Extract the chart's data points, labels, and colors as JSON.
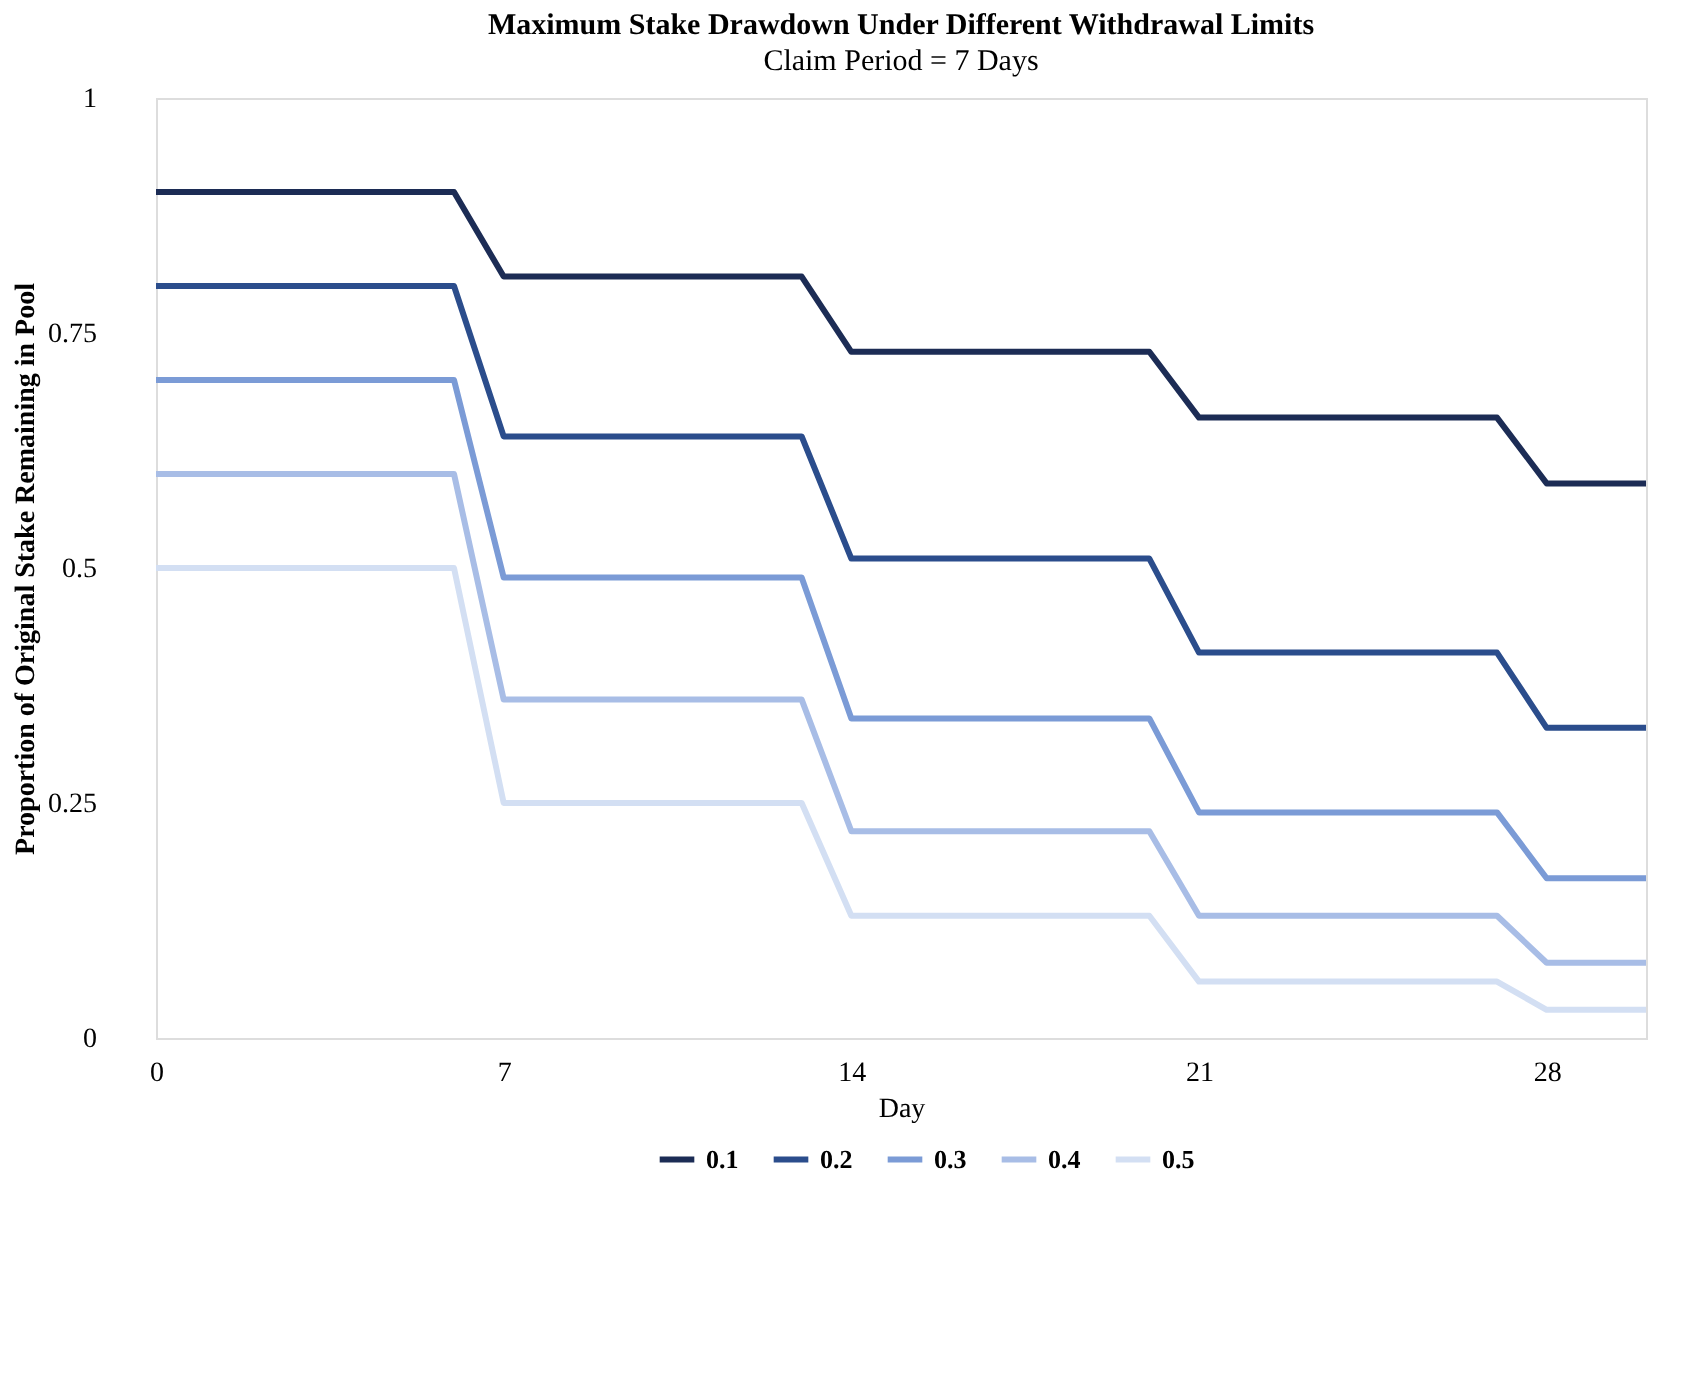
{
  "chart_data": {
    "type": "line",
    "title": "Maximum Stake Drawdown Under Different Withdrawal Limits",
    "subtitle": "Claim Period = 7 Days",
    "xlabel": "Day",
    "ylabel": "Proportion of Original Stake Remaining in Pool",
    "x": [
      0,
      1,
      2,
      3,
      4,
      5,
      6,
      7,
      8,
      9,
      10,
      11,
      12,
      13,
      14,
      15,
      16,
      17,
      18,
      19,
      20,
      21,
      22,
      23,
      24,
      25,
      26,
      27,
      28,
      29,
      30
    ],
    "series": [
      {
        "name": "0.1",
        "color": "#1c2c55",
        "values": [
          0.9,
          0.9,
          0.9,
          0.9,
          0.9,
          0.9,
          0.9,
          0.81,
          0.81,
          0.81,
          0.81,
          0.81,
          0.81,
          0.81,
          0.73,
          0.73,
          0.73,
          0.73,
          0.73,
          0.73,
          0.73,
          0.66,
          0.66,
          0.66,
          0.66,
          0.66,
          0.66,
          0.66,
          0.59,
          0.59,
          0.59
        ]
      },
      {
        "name": "0.2",
        "color": "#2b4d8c",
        "values": [
          0.8,
          0.8,
          0.8,
          0.8,
          0.8,
          0.8,
          0.8,
          0.64,
          0.64,
          0.64,
          0.64,
          0.64,
          0.64,
          0.64,
          0.51,
          0.51,
          0.51,
          0.51,
          0.51,
          0.51,
          0.51,
          0.41,
          0.41,
          0.41,
          0.41,
          0.41,
          0.41,
          0.41,
          0.33,
          0.33,
          0.33
        ]
      },
      {
        "name": "0.3",
        "color": "#7b9bd6",
        "values": [
          0.7,
          0.7,
          0.7,
          0.7,
          0.7,
          0.7,
          0.7,
          0.49,
          0.49,
          0.49,
          0.49,
          0.49,
          0.49,
          0.49,
          0.34,
          0.34,
          0.34,
          0.34,
          0.34,
          0.34,
          0.34,
          0.24,
          0.24,
          0.24,
          0.24,
          0.24,
          0.24,
          0.24,
          0.17,
          0.17,
          0.17
        ]
      },
      {
        "name": "0.4",
        "color": "#a8bde6",
        "values": [
          0.6,
          0.6,
          0.6,
          0.6,
          0.6,
          0.6,
          0.6,
          0.36,
          0.36,
          0.36,
          0.36,
          0.36,
          0.36,
          0.36,
          0.22,
          0.22,
          0.22,
          0.22,
          0.22,
          0.22,
          0.22,
          0.13,
          0.13,
          0.13,
          0.13,
          0.13,
          0.13,
          0.13,
          0.08,
          0.08,
          0.08
        ]
      },
      {
        "name": "0.5",
        "color": "#d3dff3",
        "values": [
          0.5,
          0.5,
          0.5,
          0.5,
          0.5,
          0.5,
          0.5,
          0.25,
          0.25,
          0.25,
          0.25,
          0.25,
          0.25,
          0.25,
          0.13,
          0.13,
          0.13,
          0.13,
          0.13,
          0.13,
          0.13,
          0.06,
          0.06,
          0.06,
          0.06,
          0.06,
          0.06,
          0.06,
          0.03,
          0.03,
          0.03
        ]
      }
    ],
    "xlim": [
      0,
      30
    ],
    "xticks": [
      0,
      7,
      14,
      21,
      28
    ],
    "ylim": [
      0,
      1
    ],
    "yticks": [
      0,
      0.25,
      0.5,
      0.75,
      1
    ],
    "grid": false,
    "legend": "bottom",
    "marker": "none",
    "line_style": "solid"
  }
}
